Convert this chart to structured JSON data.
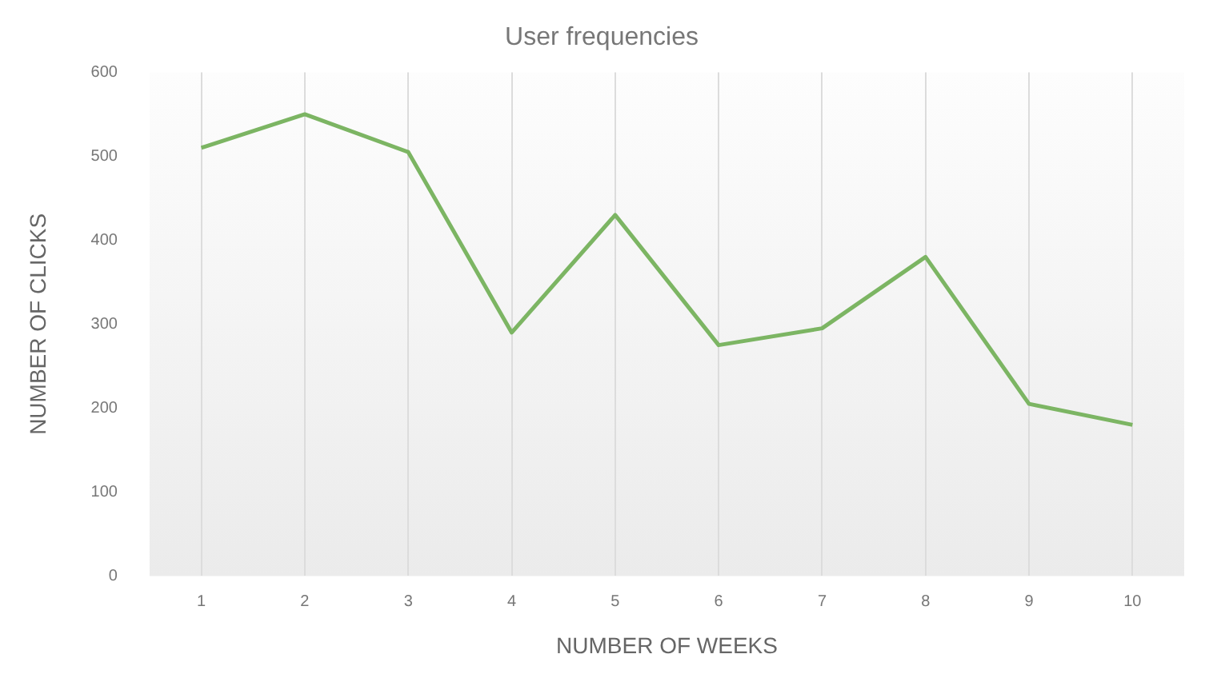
{
  "chart_data": {
    "type": "line",
    "title": "User frequencies",
    "xlabel": "NUMBER OF WEEKS",
    "ylabel": "NUMBER OF CLICKS",
    "categories": [
      "1",
      "2",
      "3",
      "4",
      "5",
      "6",
      "7",
      "8",
      "9",
      "10"
    ],
    "series": [
      {
        "color": "#7cb563",
        "values": [
          510,
          550,
          505,
          290,
          430,
          275,
          295,
          380,
          205,
          180
        ]
      }
    ],
    "ylim": [
      0,
      600
    ],
    "yticks": [
      0,
      100,
      200,
      300,
      400,
      500,
      600
    ],
    "grid": "x",
    "marker": "none",
    "line_style": "solid"
  }
}
